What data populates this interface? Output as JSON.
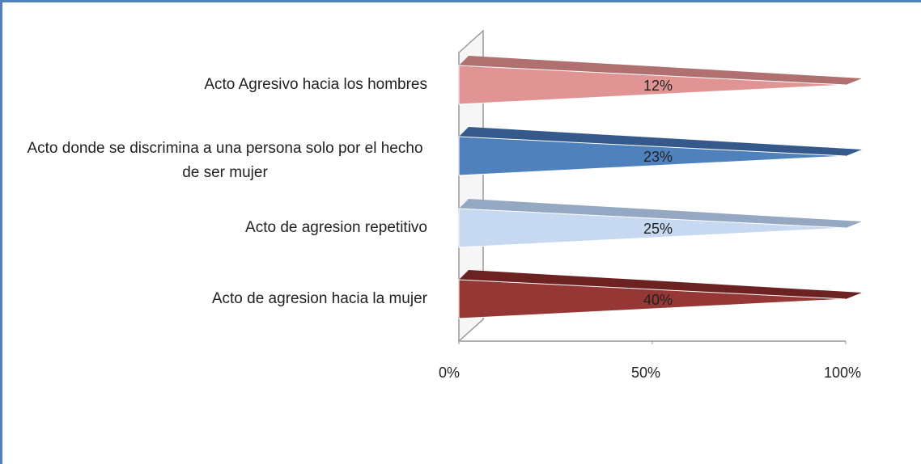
{
  "chart_data": {
    "type": "bar",
    "orientation": "horizontal",
    "percent_stacked": true,
    "shape": "pyramid",
    "categories": [
      "Acto Agresivo hacia los hombres",
      "Acto donde se discrimina a una persona solo por el hecho de ser mujer",
      "Acto de agresion repetitivo",
      "Acto de agresion hacia la mujer"
    ],
    "values": [
      12,
      23,
      25,
      40
    ],
    "value_labels": [
      "12%",
      "23%",
      "25%",
      "40%"
    ],
    "colors": [
      "#e09594",
      "#4f81bd",
      "#c6d9f1",
      "#953735"
    ],
    "top_colors": [
      "#b07070",
      "#35598a",
      "#94a8c4",
      "#6b2221"
    ],
    "xlim": [
      0,
      100
    ],
    "xticks": [
      {
        "value": 0,
        "label": "0%"
      },
      {
        "value": 50,
        "label": "50%"
      },
      {
        "value": 100,
        "label": "100%"
      }
    ]
  }
}
